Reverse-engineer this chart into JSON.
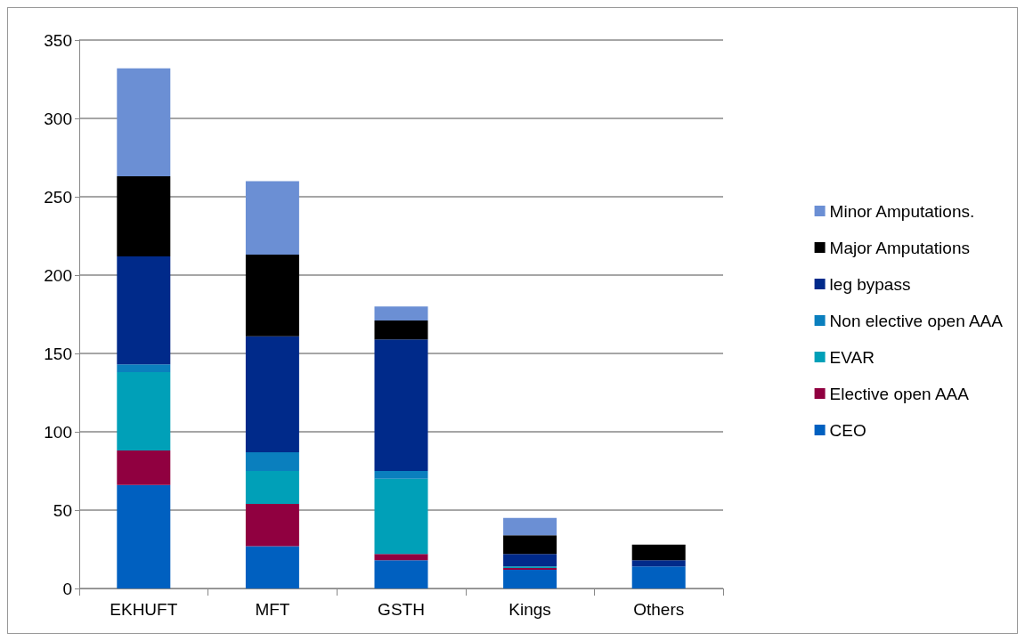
{
  "chart_data": {
    "type": "bar",
    "stacked": true,
    "categories": [
      "EKHUFT",
      "MFT",
      "GSTH",
      "Kings",
      "Others"
    ],
    "series": [
      {
        "name": "CEO",
        "color": "#0060c0",
        "values": [
          66,
          27,
          18,
          12,
          14
        ]
      },
      {
        "name": "Elective open AAA",
        "color": "#900040",
        "values": [
          22,
          27,
          4,
          1,
          0
        ]
      },
      {
        "name": "EVAR",
        "color": "#00a0b8",
        "values": [
          50,
          21,
          48,
          1,
          0
        ]
      },
      {
        "name": "Non elective open AAA",
        "color": "#0a7fbe",
        "values": [
          5,
          12,
          5,
          0,
          0
        ]
      },
      {
        "name": "leg bypass",
        "color": "#002a8a",
        "values": [
          69,
          74,
          84,
          8,
          4
        ]
      },
      {
        "name": "Major Amputations",
        "color": "#000000",
        "values": [
          51,
          52,
          12,
          12,
          10
        ]
      },
      {
        "name": "Minor Amputations.",
        "color": "#6b8fd4",
        "values": [
          69,
          47,
          9,
          11,
          0
        ]
      }
    ],
    "ylim": [
      0,
      350
    ],
    "yticks": [
      0,
      50,
      100,
      150,
      200,
      250,
      300,
      350
    ],
    "grid": "y",
    "legend": "right"
  }
}
